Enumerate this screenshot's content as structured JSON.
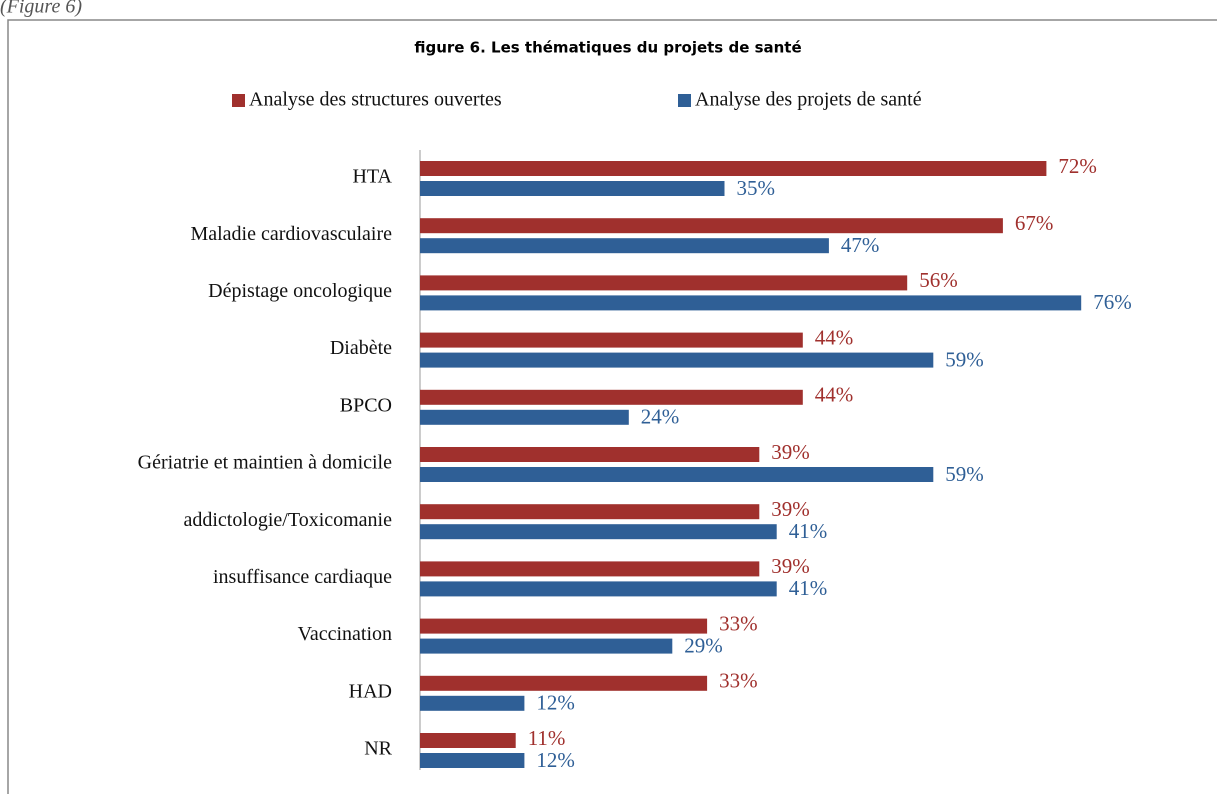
{
  "caption": "(Figure 6)",
  "chart_data": {
    "type": "bar",
    "orientation": "horizontal",
    "title": "figure 6. Les thématiques du projets de santé",
    "categories": [
      "HTA",
      "Maladie cardiovasculaire",
      "Dépistage oncologique",
      "Diabète",
      "BPCO",
      "Gériatrie et maintien à domicile",
      "addictologie/Toxicomanie",
      "insuffisance cardiaque",
      "Vaccination",
      "HAD",
      "NR"
    ],
    "series": [
      {
        "name": "Analyse des structures ouvertes",
        "color": "#a0302d",
        "values": [
          72,
          67,
          56,
          44,
          44,
          39,
          39,
          39,
          33,
          33,
          11
        ],
        "value_labels": [
          "72%",
          "67%",
          "56%",
          "44%",
          "44%",
          "39%",
          "39%",
          "39%",
          "33%",
          "33%",
          "11%"
        ]
      },
      {
        "name": "Analyse des projets de santé",
        "color": "#2f5f96",
        "values": [
          35,
          47,
          76,
          59,
          24,
          59,
          41,
          41,
          29,
          12,
          12
        ],
        "value_labels": [
          "35%",
          "47%",
          "76%",
          "59%",
          "24%",
          "59%",
          "41%",
          "41%",
          "29%",
          "12%",
          "12%"
        ]
      }
    ],
    "legend": "top"
  }
}
